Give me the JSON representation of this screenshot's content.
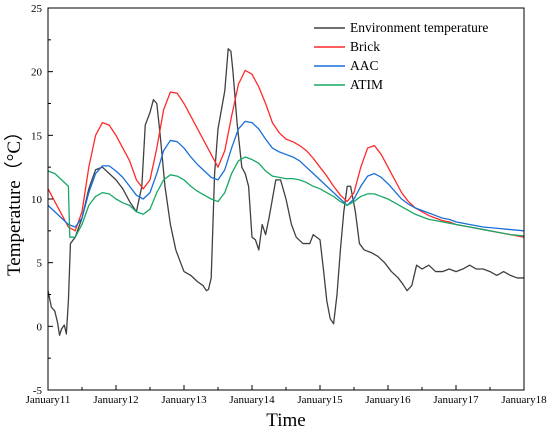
{
  "chart_data": {
    "type": "line",
    "xlabel": "Time",
    "ylabel": "Temperature（°C）",
    "xlim": [
      0,
      7
    ],
    "ylim": [
      -5,
      25
    ],
    "x_tick_labels": [
      "January11",
      "January12",
      "January13",
      "January14",
      "January15",
      "January16",
      "January17",
      "January18"
    ],
    "y_ticks": [
      -5,
      0,
      5,
      10,
      15,
      20,
      25
    ],
    "legend_position": "top-right",
    "series": [
      {
        "name": "Environment temperature",
        "color": "#404040",
        "points": [
          [
            0,
            2.8
          ],
          [
            0.05,
            1.5
          ],
          [
            0.1,
            1.2
          ],
          [
            0.14,
            0.3
          ],
          [
            0.17,
            -0.7
          ],
          [
            0.2,
            -0.2
          ],
          [
            0.24,
            0.1
          ],
          [
            0.27,
            -0.6
          ],
          [
            0.3,
            2.0
          ],
          [
            0.33,
            6.5
          ],
          [
            0.4,
            7.0
          ],
          [
            0.5,
            8.5
          ],
          [
            0.6,
            10.8
          ],
          [
            0.7,
            12.3
          ],
          [
            0.8,
            12.5
          ],
          [
            0.9,
            12.0
          ],
          [
            1.0,
            11.5
          ],
          [
            1.1,
            10.8
          ],
          [
            1.2,
            9.8
          ],
          [
            1.3,
            9.0
          ],
          [
            1.38,
            11.0
          ],
          [
            1.43,
            15.8
          ],
          [
            1.5,
            16.8
          ],
          [
            1.55,
            17.8
          ],
          [
            1.6,
            17.5
          ],
          [
            1.65,
            15.0
          ],
          [
            1.72,
            11.0
          ],
          [
            1.8,
            8.0
          ],
          [
            1.88,
            6.0
          ],
          [
            1.95,
            5.0
          ],
          [
            2.0,
            4.3
          ],
          [
            2.1,
            4.0
          ],
          [
            2.2,
            3.5
          ],
          [
            2.28,
            3.2
          ],
          [
            2.33,
            2.8
          ],
          [
            2.36,
            2.9
          ],
          [
            2.4,
            3.8
          ],
          [
            2.45,
            12.0
          ],
          [
            2.5,
            15.5
          ],
          [
            2.55,
            17.0
          ],
          [
            2.6,
            18.5
          ],
          [
            2.65,
            21.8
          ],
          [
            2.69,
            21.6
          ],
          [
            2.72,
            20.0
          ],
          [
            2.78,
            16.0
          ],
          [
            2.85,
            12.5
          ],
          [
            2.9,
            12.0
          ],
          [
            2.95,
            11.0
          ],
          [
            3.0,
            7.0
          ],
          [
            3.05,
            6.8
          ],
          [
            3.1,
            6.0
          ],
          [
            3.15,
            8.0
          ],
          [
            3.2,
            7.2
          ],
          [
            3.25,
            8.5
          ],
          [
            3.3,
            10.0
          ],
          [
            3.35,
            11.5
          ],
          [
            3.42,
            11.5
          ],
          [
            3.5,
            10.0
          ],
          [
            3.58,
            8.0
          ],
          [
            3.65,
            7.0
          ],
          [
            3.75,
            6.5
          ],
          [
            3.85,
            6.5
          ],
          [
            3.9,
            7.2
          ],
          [
            4.0,
            6.8
          ],
          [
            4.05,
            4.5
          ],
          [
            4.1,
            2.0
          ],
          [
            4.15,
            0.6
          ],
          [
            4.2,
            0.2
          ],
          [
            4.25,
            2.5
          ],
          [
            4.3,
            6.0
          ],
          [
            4.35,
            9.0
          ],
          [
            4.4,
            11.0
          ],
          [
            4.45,
            11.0
          ],
          [
            4.52,
            9.0
          ],
          [
            4.58,
            6.5
          ],
          [
            4.65,
            6.0
          ],
          [
            4.75,
            5.8
          ],
          [
            4.85,
            5.5
          ],
          [
            4.95,
            5.0
          ],
          [
            5.05,
            4.3
          ],
          [
            5.15,
            3.8
          ],
          [
            5.22,
            3.3
          ],
          [
            5.28,
            2.8
          ],
          [
            5.35,
            3.2
          ],
          [
            5.42,
            4.8
          ],
          [
            5.5,
            4.5
          ],
          [
            5.6,
            4.8
          ],
          [
            5.7,
            4.3
          ],
          [
            5.8,
            4.3
          ],
          [
            5.9,
            4.5
          ],
          [
            6.0,
            4.3
          ],
          [
            6.1,
            4.5
          ],
          [
            6.2,
            4.8
          ],
          [
            6.3,
            4.5
          ],
          [
            6.4,
            4.5
          ],
          [
            6.5,
            4.3
          ],
          [
            6.6,
            4.0
          ],
          [
            6.7,
            4.3
          ],
          [
            6.8,
            4.0
          ],
          [
            6.9,
            3.8
          ],
          [
            7.0,
            3.8
          ]
        ]
      },
      {
        "name": "Brick",
        "color": "#ff2a2a",
        "points": [
          [
            0,
            10.8
          ],
          [
            0.1,
            9.8
          ],
          [
            0.2,
            8.8
          ],
          [
            0.3,
            7.8
          ],
          [
            0.4,
            7.5
          ],
          [
            0.5,
            9.0
          ],
          [
            0.6,
            12.5
          ],
          [
            0.7,
            15.0
          ],
          [
            0.8,
            16.0
          ],
          [
            0.9,
            15.8
          ],
          [
            1.0,
            15.0
          ],
          [
            1.1,
            14.0
          ],
          [
            1.2,
            13.0
          ],
          [
            1.3,
            11.5
          ],
          [
            1.4,
            10.8
          ],
          [
            1.5,
            11.5
          ],
          [
            1.6,
            14.0
          ],
          [
            1.7,
            17.0
          ],
          [
            1.8,
            18.4
          ],
          [
            1.9,
            18.3
          ],
          [
            2.0,
            17.5
          ],
          [
            2.1,
            16.5
          ],
          [
            2.2,
            15.5
          ],
          [
            2.3,
            14.5
          ],
          [
            2.4,
            13.5
          ],
          [
            2.5,
            12.5
          ],
          [
            2.6,
            13.8
          ],
          [
            2.7,
            16.5
          ],
          [
            2.8,
            19.0
          ],
          [
            2.9,
            20.1
          ],
          [
            3.0,
            19.8
          ],
          [
            3.1,
            18.8
          ],
          [
            3.2,
            17.5
          ],
          [
            3.3,
            16.0
          ],
          [
            3.4,
            15.2
          ],
          [
            3.5,
            14.7
          ],
          [
            3.6,
            14.5
          ],
          [
            3.7,
            14.2
          ],
          [
            3.8,
            13.8
          ],
          [
            3.9,
            13.2
          ],
          [
            4.0,
            12.5
          ],
          [
            4.1,
            11.8
          ],
          [
            4.2,
            11.0
          ],
          [
            4.3,
            10.3
          ],
          [
            4.4,
            9.8
          ],
          [
            4.5,
            10.5
          ],
          [
            4.6,
            12.5
          ],
          [
            4.7,
            14.0
          ],
          [
            4.8,
            14.2
          ],
          [
            4.9,
            13.5
          ],
          [
            5.0,
            12.5
          ],
          [
            5.1,
            11.5
          ],
          [
            5.2,
            10.5
          ],
          [
            5.3,
            9.8
          ],
          [
            5.4,
            9.3
          ],
          [
            5.5,
            9.0
          ],
          [
            5.6,
            8.7
          ],
          [
            5.7,
            8.5
          ],
          [
            5.8,
            8.3
          ],
          [
            5.9,
            8.2
          ],
          [
            6.0,
            8.0
          ],
          [
            6.2,
            7.8
          ],
          [
            6.4,
            7.6
          ],
          [
            6.6,
            7.4
          ],
          [
            6.8,
            7.2
          ],
          [
            7.0,
            7.0
          ]
        ]
      },
      {
        "name": "AAC",
        "color": "#1a6fd8",
        "points": [
          [
            0,
            9.5
          ],
          [
            0.1,
            9.0
          ],
          [
            0.2,
            8.5
          ],
          [
            0.3,
            8.0
          ],
          [
            0.4,
            7.8
          ],
          [
            0.5,
            8.5
          ],
          [
            0.6,
            10.5
          ],
          [
            0.7,
            12.0
          ],
          [
            0.8,
            12.6
          ],
          [
            0.9,
            12.6
          ],
          [
            1.0,
            12.2
          ],
          [
            1.1,
            11.7
          ],
          [
            1.2,
            11.0
          ],
          [
            1.3,
            10.3
          ],
          [
            1.4,
            10.0
          ],
          [
            1.5,
            10.5
          ],
          [
            1.6,
            12.0
          ],
          [
            1.7,
            13.8
          ],
          [
            1.8,
            14.6
          ],
          [
            1.9,
            14.5
          ],
          [
            2.0,
            14.0
          ],
          [
            2.1,
            13.3
          ],
          [
            2.2,
            12.7
          ],
          [
            2.3,
            12.2
          ],
          [
            2.4,
            11.7
          ],
          [
            2.5,
            11.5
          ],
          [
            2.6,
            12.3
          ],
          [
            2.7,
            14.0
          ],
          [
            2.8,
            15.5
          ],
          [
            2.9,
            16.1
          ],
          [
            3.0,
            16.0
          ],
          [
            3.1,
            15.5
          ],
          [
            3.2,
            14.7
          ],
          [
            3.3,
            14.0
          ],
          [
            3.4,
            13.7
          ],
          [
            3.5,
            13.5
          ],
          [
            3.6,
            13.3
          ],
          [
            3.7,
            13.0
          ],
          [
            3.8,
            12.5
          ],
          [
            3.9,
            12.0
          ],
          [
            4.0,
            11.5
          ],
          [
            4.1,
            11.0
          ],
          [
            4.2,
            10.5
          ],
          [
            4.3,
            10.0
          ],
          [
            4.4,
            9.5
          ],
          [
            4.5,
            10.0
          ],
          [
            4.6,
            11.0
          ],
          [
            4.7,
            11.8
          ],
          [
            4.8,
            12.0
          ],
          [
            4.9,
            11.7
          ],
          [
            5.0,
            11.2
          ],
          [
            5.1,
            10.6
          ],
          [
            5.2,
            10.0
          ],
          [
            5.3,
            9.6
          ],
          [
            5.4,
            9.3
          ],
          [
            5.5,
            9.1
          ],
          [
            5.6,
            8.9
          ],
          [
            5.7,
            8.7
          ],
          [
            5.8,
            8.5
          ],
          [
            5.9,
            8.4
          ],
          [
            6.0,
            8.2
          ],
          [
            6.2,
            8.0
          ],
          [
            6.4,
            7.8
          ],
          [
            6.6,
            7.7
          ],
          [
            6.8,
            7.6
          ],
          [
            7.0,
            7.5
          ]
        ]
      },
      {
        "name": "ATIM",
        "color": "#18a865",
        "points": [
          [
            0,
            12.2
          ],
          [
            0.1,
            12.0
          ],
          [
            0.2,
            11.5
          ],
          [
            0.3,
            11.0
          ],
          [
            0.32,
            7.0
          ],
          [
            0.4,
            7.0
          ],
          [
            0.5,
            8.0
          ],
          [
            0.6,
            9.5
          ],
          [
            0.7,
            10.2
          ],
          [
            0.8,
            10.5
          ],
          [
            0.9,
            10.4
          ],
          [
            1.0,
            10.0
          ],
          [
            1.1,
            9.7
          ],
          [
            1.2,
            9.5
          ],
          [
            1.3,
            9.0
          ],
          [
            1.4,
            8.8
          ],
          [
            1.5,
            9.2
          ],
          [
            1.6,
            10.5
          ],
          [
            1.7,
            11.5
          ],
          [
            1.8,
            11.9
          ],
          [
            1.9,
            11.8
          ],
          [
            2.0,
            11.5
          ],
          [
            2.1,
            11.0
          ],
          [
            2.2,
            10.6
          ],
          [
            2.3,
            10.3
          ],
          [
            2.4,
            10.0
          ],
          [
            2.5,
            9.8
          ],
          [
            2.6,
            10.5
          ],
          [
            2.7,
            12.0
          ],
          [
            2.8,
            13.0
          ],
          [
            2.9,
            13.3
          ],
          [
            3.0,
            13.1
          ],
          [
            3.1,
            12.8
          ],
          [
            3.2,
            12.2
          ],
          [
            3.3,
            11.8
          ],
          [
            3.4,
            11.7
          ],
          [
            3.5,
            11.6
          ],
          [
            3.6,
            11.6
          ],
          [
            3.7,
            11.5
          ],
          [
            3.8,
            11.3
          ],
          [
            3.9,
            11.0
          ],
          [
            4.0,
            10.8
          ],
          [
            4.1,
            10.5
          ],
          [
            4.2,
            10.2
          ],
          [
            4.3,
            9.8
          ],
          [
            4.4,
            9.5
          ],
          [
            4.5,
            9.8
          ],
          [
            4.6,
            10.2
          ],
          [
            4.7,
            10.4
          ],
          [
            4.8,
            10.4
          ],
          [
            4.9,
            10.2
          ],
          [
            5.0,
            10.0
          ],
          [
            5.1,
            9.7
          ],
          [
            5.2,
            9.4
          ],
          [
            5.3,
            9.1
          ],
          [
            5.4,
            8.8
          ],
          [
            5.5,
            8.6
          ],
          [
            5.6,
            8.4
          ],
          [
            5.7,
            8.3
          ],
          [
            5.8,
            8.2
          ],
          [
            5.9,
            8.1
          ],
          [
            6.0,
            8.0
          ],
          [
            6.2,
            7.8
          ],
          [
            6.4,
            7.6
          ],
          [
            6.6,
            7.4
          ],
          [
            6.8,
            7.2
          ],
          [
            7.0,
            7.1
          ]
        ]
      }
    ]
  }
}
